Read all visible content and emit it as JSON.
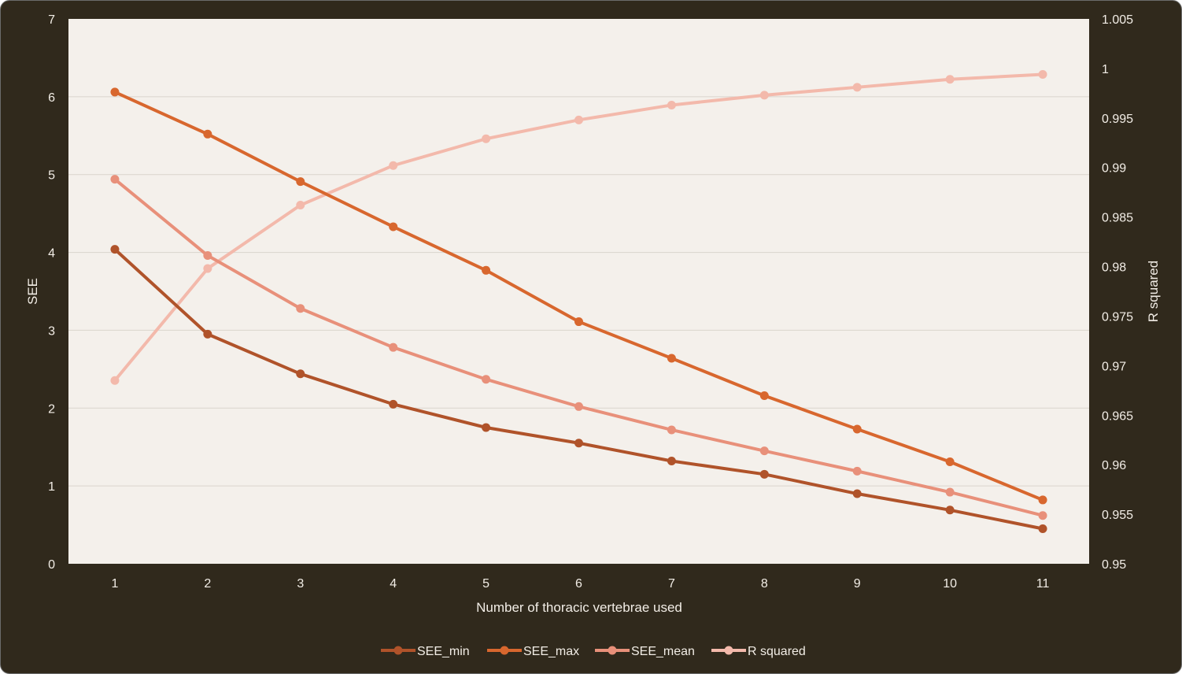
{
  "chart_data": {
    "type": "line",
    "title": "",
    "xlabel": "Number of thoracic vertebrae used",
    "ylabel": "SEE",
    "y2label": "R squared",
    "categories": [
      "1",
      "2",
      "3",
      "4",
      "5",
      "6",
      "7",
      "8",
      "9",
      "10",
      "11"
    ],
    "ylim": [
      0,
      7
    ],
    "yticks": [
      "0",
      "1",
      "2",
      "3",
      "4",
      "5",
      "6",
      "7"
    ],
    "y2lim": [
      0.95,
      1.005
    ],
    "y2ticks": [
      "0.95",
      "0.955",
      "0.96",
      "0.965",
      "0.97",
      "0.975",
      "0.98",
      "0.985",
      "0.99",
      "0.995",
      "1",
      "1.005"
    ],
    "grid": true,
    "legend_position": "bottom",
    "series": [
      {
        "name": "SEE_min",
        "axis": "left",
        "color": "#b0532a",
        "values": [
          4.04,
          2.95,
          2.44,
          2.05,
          1.75,
          1.55,
          1.32,
          1.15,
          0.9,
          0.69,
          0.45
        ]
      },
      {
        "name": "SEE_max",
        "axis": "left",
        "color": "#d8672e",
        "values": [
          6.06,
          5.52,
          4.91,
          4.33,
          3.77,
          3.11,
          2.64,
          2.16,
          1.73,
          1.31,
          0.82
        ]
      },
      {
        "name": "SEE_mean",
        "axis": "left",
        "color": "#e8907a",
        "values": [
          4.94,
          3.96,
          3.28,
          2.78,
          2.37,
          2.02,
          1.72,
          1.45,
          1.19,
          0.92,
          0.62
        ]
      },
      {
        "name": "R squared",
        "axis": "right",
        "color": "#f3b9ab",
        "values": [
          0.9685,
          0.9798,
          0.9862,
          0.9902,
          0.9929,
          0.9948,
          0.9963,
          0.9973,
          0.9981,
          0.9989,
          0.9994
        ]
      }
    ]
  }
}
